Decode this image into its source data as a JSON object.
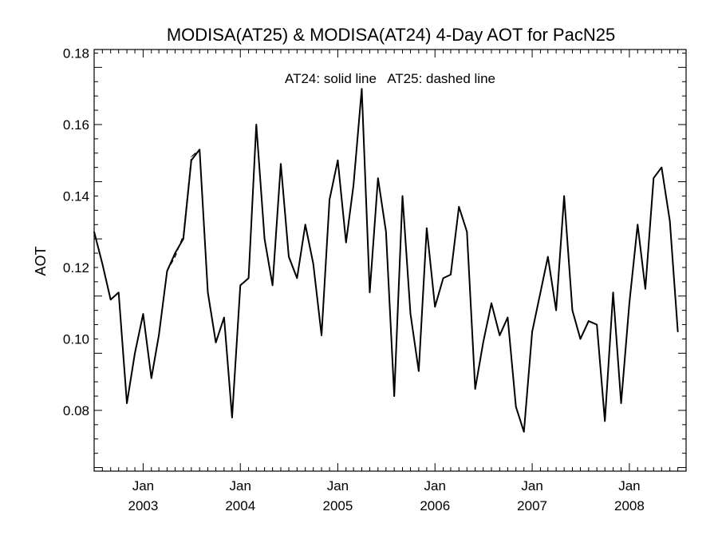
{
  "chart_data": {
    "type": "line",
    "title": "MODISA(AT25) & MODISA(AT24) 4-Day AOT for PacN25",
    "ylabel": "AOT",
    "xlabel": "",
    "annotation": "AT24: solid line   AT25: dashed line",
    "ylim": [
      0.063,
      0.181
    ],
    "xlim": [
      "2002-07-01",
      "2008-08-01"
    ],
    "y_ticks": [
      "0.08",
      "0.10",
      "0.12",
      "0.14",
      "0.16",
      "0.18"
    ],
    "x_ticks": [
      {
        "month": "Jan",
        "year": "2003",
        "date": "2003-01-01"
      },
      {
        "month": "Jan",
        "year": "2004",
        "date": "2004-01-01"
      },
      {
        "month": "Jan",
        "year": "2005",
        "date": "2005-01-01"
      },
      {
        "month": "Jan",
        "year": "2006",
        "date": "2006-01-01"
      },
      {
        "month": "Jan",
        "year": "2007",
        "date": "2007-01-01"
      },
      {
        "month": "Jan",
        "year": "2008",
        "date": "2008-01-01"
      }
    ],
    "grid": false,
    "series": [
      {
        "name": "AT24",
        "style": "solid",
        "color": "#000000",
        "points": [
          [
            "2002-07-01",
            0.13
          ],
          [
            "2002-08-01",
            0.121
          ],
          [
            "2002-09-01",
            0.111
          ],
          [
            "2002-10-01",
            0.113
          ],
          [
            "2002-11-01",
            0.082
          ],
          [
            "2002-12-01",
            0.096
          ],
          [
            "2003-01-01",
            0.107
          ],
          [
            "2003-02-01",
            0.089
          ],
          [
            "2003-03-01",
            0.101
          ],
          [
            "2003-04-01",
            0.119
          ],
          [
            "2003-05-01",
            0.124
          ],
          [
            "2003-06-01",
            0.128
          ],
          [
            "2003-07-01",
            0.15
          ],
          [
            "2003-08-01",
            0.153
          ],
          [
            "2003-09-01",
            0.113
          ],
          [
            "2003-10-01",
            0.099
          ],
          [
            "2003-11-01",
            0.106
          ],
          [
            "2003-12-01",
            0.078
          ],
          [
            "2004-01-01",
            0.115
          ],
          [
            "2004-02-01",
            0.117
          ],
          [
            "2004-03-01",
            0.16
          ],
          [
            "2004-04-01",
            0.128
          ],
          [
            "2004-05-01",
            0.115
          ],
          [
            "2004-06-01",
            0.149
          ],
          [
            "2004-07-01",
            0.123
          ],
          [
            "2004-08-01",
            0.117
          ],
          [
            "2004-09-01",
            0.132
          ],
          [
            "2004-10-01",
            0.121
          ],
          [
            "2004-11-01",
            0.101
          ],
          [
            "2004-12-01",
            0.139
          ],
          [
            "2005-01-01",
            0.15
          ],
          [
            "2005-02-01",
            0.127
          ],
          [
            "2005-03-01",
            0.143
          ],
          [
            "2005-04-01",
            0.17
          ],
          [
            "2005-05-01",
            0.113
          ],
          [
            "2005-06-01",
            0.145
          ],
          [
            "2005-07-01",
            0.13
          ],
          [
            "2005-08-01",
            0.084
          ],
          [
            "2005-09-01",
            0.14
          ],
          [
            "2005-10-01",
            0.107
          ],
          [
            "2005-11-01",
            0.091
          ],
          [
            "2005-12-01",
            0.131
          ],
          [
            "2006-01-01",
            0.109
          ],
          [
            "2006-02-01",
            0.117
          ],
          [
            "2006-03-01",
            0.118
          ],
          [
            "2006-04-01",
            0.137
          ],
          [
            "2006-05-01",
            0.13
          ],
          [
            "2006-06-01",
            0.086
          ],
          [
            "2006-07-01",
            0.099
          ],
          [
            "2006-08-01",
            0.11
          ],
          [
            "2006-09-01",
            0.101
          ],
          [
            "2006-10-01",
            0.106
          ],
          [
            "2006-11-01",
            0.081
          ],
          [
            "2006-12-01",
            0.074
          ],
          [
            "2007-01-01",
            0.102
          ],
          [
            "2007-02-01",
            0.113
          ],
          [
            "2007-03-01",
            0.123
          ],
          [
            "2007-04-01",
            0.108
          ],
          [
            "2007-05-01",
            0.14
          ],
          [
            "2007-06-01",
            0.108
          ],
          [
            "2007-07-01",
            0.1
          ],
          [
            "2007-08-01",
            0.105
          ],
          [
            "2007-09-01",
            0.104
          ],
          [
            "2007-10-01",
            0.077
          ],
          [
            "2007-11-01",
            0.113
          ],
          [
            "2007-12-01",
            0.082
          ],
          [
            "2008-01-01",
            0.11
          ],
          [
            "2008-02-01",
            0.132
          ],
          [
            "2008-03-01",
            0.114
          ],
          [
            "2008-04-01",
            0.145
          ],
          [
            "2008-05-01",
            0.148
          ],
          [
            "2008-06-01",
            0.133
          ],
          [
            "2008-07-01",
            0.102
          ]
        ]
      },
      {
        "name": "AT25",
        "style": "dashed",
        "color": "#000000",
        "points": [
          [
            "2002-07-01",
            0.13
          ],
          [
            "2002-08-01",
            0.121
          ],
          [
            "2002-09-01",
            0.111
          ],
          [
            "2002-10-01",
            0.113
          ],
          [
            "2002-11-01",
            0.082
          ],
          [
            "2002-12-01",
            0.096
          ],
          [
            "2003-01-01",
            0.107
          ],
          [
            "2003-02-01",
            0.089
          ],
          [
            "2003-03-01",
            0.101
          ],
          [
            "2003-04-01",
            0.119
          ],
          [
            "2003-05-01",
            0.123
          ],
          [
            "2003-06-01",
            0.129
          ],
          [
            "2003-07-01",
            0.151
          ],
          [
            "2003-08-01",
            0.153
          ],
          [
            "2003-09-01",
            0.113
          ],
          [
            "2003-10-01",
            0.099
          ],
          [
            "2003-11-01",
            0.106
          ],
          [
            "2003-12-01",
            0.078
          ],
          [
            "2004-01-01",
            0.115
          ],
          [
            "2004-02-01",
            0.117
          ],
          [
            "2004-03-01",
            0.16
          ],
          [
            "2004-04-01",
            0.128
          ],
          [
            "2004-05-01",
            0.115
          ],
          [
            "2004-06-01",
            0.149
          ],
          [
            "2004-07-01",
            0.123
          ],
          [
            "2004-08-01",
            0.117
          ],
          [
            "2004-09-01",
            0.132
          ],
          [
            "2004-10-01",
            0.121
          ],
          [
            "2004-11-01",
            0.101
          ],
          [
            "2004-12-01",
            0.139
          ],
          [
            "2005-01-01",
            0.15
          ],
          [
            "2005-02-01",
            0.127
          ],
          [
            "2005-03-01",
            0.143
          ],
          [
            "2005-04-01",
            0.17
          ],
          [
            "2005-05-01",
            0.113
          ],
          [
            "2005-06-01",
            0.145
          ],
          [
            "2005-07-01",
            0.13
          ],
          [
            "2005-08-01",
            0.084
          ],
          [
            "2005-09-01",
            0.14
          ],
          [
            "2005-10-01",
            0.107
          ],
          [
            "2005-11-01",
            0.091
          ],
          [
            "2005-12-01",
            0.131
          ],
          [
            "2006-01-01",
            0.109
          ],
          [
            "2006-02-01",
            0.117
          ],
          [
            "2006-03-01",
            0.118
          ],
          [
            "2006-04-01",
            0.137
          ],
          [
            "2006-05-01",
            0.13
          ],
          [
            "2006-06-01",
            0.086
          ],
          [
            "2006-07-01",
            0.099
          ],
          [
            "2006-08-01",
            0.11
          ],
          [
            "2006-09-01",
            0.101
          ],
          [
            "2006-10-01",
            0.106
          ],
          [
            "2006-11-01",
            0.081
          ],
          [
            "2006-12-01",
            0.074
          ],
          [
            "2007-01-01",
            0.102
          ],
          [
            "2007-02-01",
            0.113
          ],
          [
            "2007-03-01",
            0.123
          ],
          [
            "2007-04-01",
            0.108
          ],
          [
            "2007-05-01",
            0.14
          ],
          [
            "2007-06-01",
            0.108
          ],
          [
            "2007-07-01",
            0.1
          ],
          [
            "2007-08-01",
            0.105
          ],
          [
            "2007-09-01",
            0.104
          ],
          [
            "2007-10-01",
            0.077
          ],
          [
            "2007-11-01",
            0.113
          ],
          [
            "2007-12-01",
            0.082
          ],
          [
            "2008-01-01",
            0.11
          ],
          [
            "2008-02-01",
            0.132
          ],
          [
            "2008-03-01",
            0.114
          ],
          [
            "2008-04-01",
            0.145
          ],
          [
            "2008-05-01",
            0.148
          ],
          [
            "2008-06-01",
            0.133
          ],
          [
            "2008-07-01",
            0.102
          ]
        ]
      }
    ]
  }
}
